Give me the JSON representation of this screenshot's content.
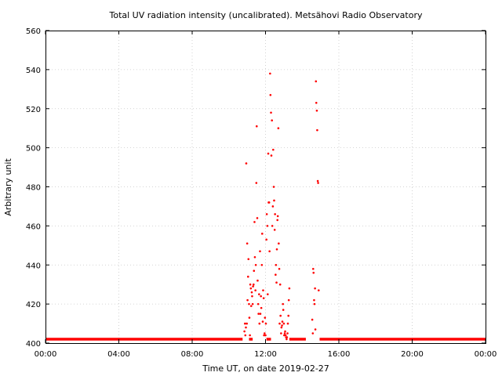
{
  "chart_data": {
    "type": "scatter",
    "title": "Total UV radiation intensity (uncalibrated). Metsähovi Radio Observatory",
    "xlabel": "Time UT, on date 2019-02-27",
    "ylabel": "Arbitrary unit",
    "x_unit": "hours UT",
    "xlim": [
      0,
      24
    ],
    "ylim": [
      400,
      560
    ],
    "x_ticks": [
      0,
      4,
      8,
      12,
      16,
      20,
      24
    ],
    "x_tick_labels": [
      "00:00",
      "04:00",
      "08:00",
      "12:00",
      "16:00",
      "20:00",
      "00:00"
    ],
    "y_ticks": [
      400,
      420,
      440,
      460,
      480,
      500,
      520,
      540,
      560
    ],
    "grid": true,
    "point_color": "#ff0000",
    "baseline": {
      "value": 402,
      "segments": [
        [
          0,
          10.75
        ],
        [
          11.1,
          11.3
        ],
        [
          12.05,
          12.3
        ],
        [
          13.3,
          14.2
        ],
        [
          14.95,
          24
        ]
      ]
    },
    "series": [
      {
        "x": [
          10.85,
          10.88,
          10.9,
          10.93,
          10.95,
          10.98,
          11.0,
          11.02,
          11.05,
          11.07,
          11.1,
          11.12,
          11.15,
          11.17,
          11.2,
          11.22,
          11.25,
          11.27,
          11.3,
          11.32,
          11.35,
          11.37,
          11.4,
          11.42,
          11.45,
          11.47,
          11.5,
          11.52,
          11.55,
          11.57,
          11.6,
          11.62,
          11.65,
          11.67,
          11.7,
          11.72,
          11.75,
          11.77,
          11.8,
          11.82,
          11.85,
          11.87,
          11.9,
          11.92,
          11.95,
          11.97,
          12.0,
          12.02,
          12.05,
          12.07,
          12.1,
          12.12,
          12.15,
          12.17,
          12.2,
          12.22,
          12.25,
          12.27,
          12.3,
          12.32,
          12.35,
          12.37,
          12.4,
          12.42,
          12.45,
          12.47,
          12.5,
          12.52,
          12.55,
          12.57,
          12.6,
          12.62,
          12.65,
          12.67,
          12.7,
          12.72,
          12.75,
          12.77,
          12.8,
          12.82,
          12.85,
          12.87,
          12.9,
          12.92,
          12.95,
          12.97,
          13.0,
          13.02,
          13.05,
          13.07,
          13.1,
          13.12,
          13.15,
          13.17,
          13.2,
          13.22,
          13.25,
          13.27,
          13.3,
          14.55,
          14.58,
          14.6,
          14.62,
          14.65,
          14.67,
          14.7,
          14.72,
          14.75,
          14.77,
          14.8,
          14.82,
          14.85,
          14.87,
          14.9
        ],
        "y": [
          406,
          410,
          404,
          408,
          492,
          410,
          451,
          422,
          434,
          443,
          420,
          413,
          404,
          430,
          428,
          419,
          426,
          424,
          420,
          429,
          430,
          437,
          462,
          444,
          427,
          440,
          482,
          511,
          464,
          432,
          420,
          415,
          425,
          410,
          447,
          415,
          424,
          418,
          440,
          456,
          411,
          427,
          423,
          404,
          405,
          413,
          404,
          410,
          453,
          466,
          460,
          425,
          497,
          472,
          472,
          447,
          538,
          527,
          518,
          496,
          514,
          460,
          470,
          499,
          480,
          473,
          458,
          466,
          435,
          440,
          431,
          448,
          463,
          465,
          510,
          451,
          438,
          410,
          430,
          414,
          405,
          408,
          409,
          411,
          420,
          417,
          410,
          404,
          405,
          406,
          404,
          403,
          402,
          403,
          405,
          410,
          414,
          422,
          428,
          412,
          405,
          438,
          436,
          422,
          420,
          428,
          407,
          534,
          523,
          519,
          509,
          483,
          482,
          427
        ]
      }
    ]
  }
}
